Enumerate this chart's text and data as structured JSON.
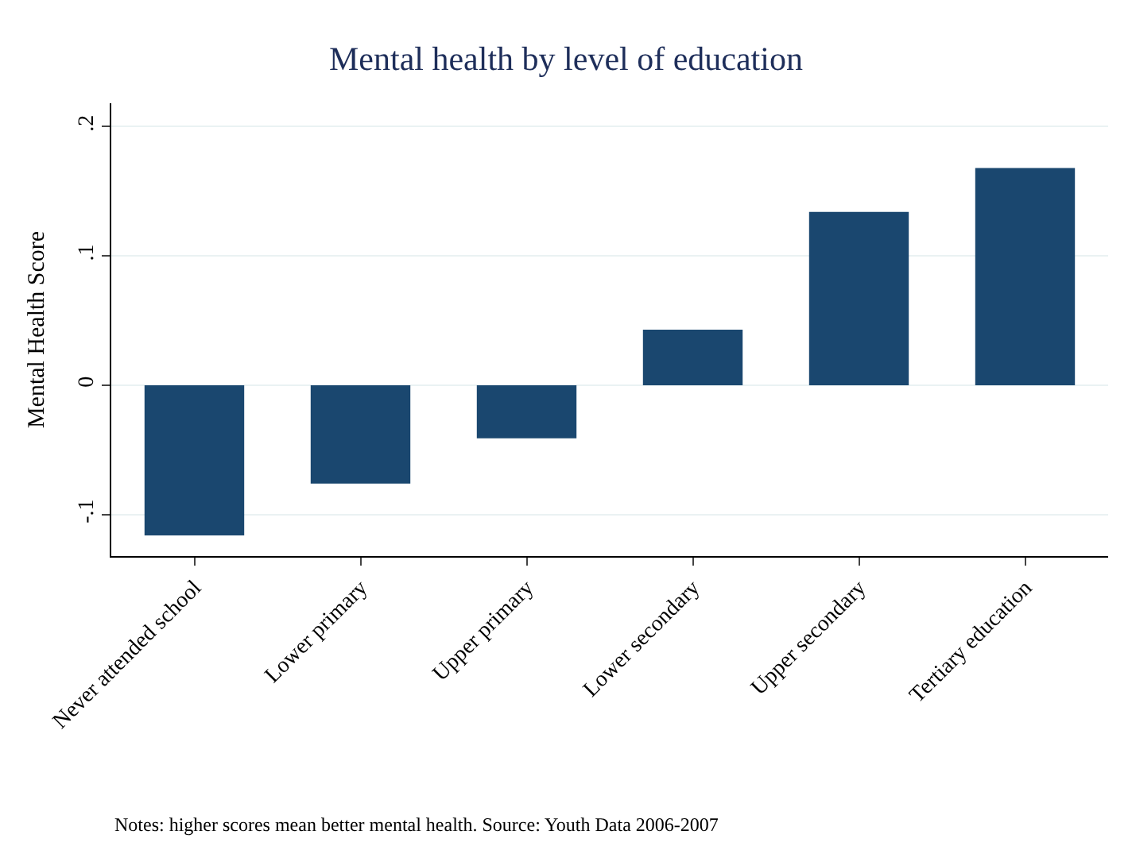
{
  "chart_data": {
    "type": "bar",
    "title": "Mental health by level of education",
    "ylabel": "Mental Health Score",
    "categories": [
      "Never attended school",
      "Lower primary",
      "Upper primary",
      "Lower secondary",
      "Upper secondary",
      "Tertiary education"
    ],
    "values": [
      -0.116,
      -0.076,
      -0.041,
      0.043,
      0.134,
      0.168
    ],
    "color": "#1a476f",
    "ylim": [
      -0.132,
      0.218
    ],
    "yticks": [
      {
        "value": -0.1,
        "label": "-.1"
      },
      {
        "value": 0,
        "label": "0"
      },
      {
        "value": 0.1,
        "label": ".1"
      },
      {
        "value": 0.2,
        "label": ".2"
      }
    ],
    "grid": "y",
    "annotations": [
      "Notes: higher scores mean better mental health. Source: Youth Data 2006-2007"
    ]
  }
}
